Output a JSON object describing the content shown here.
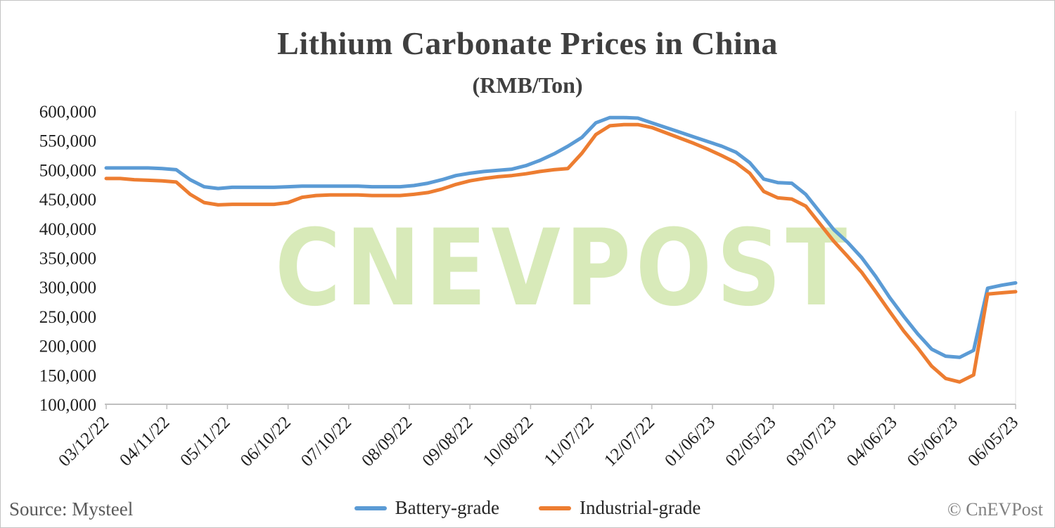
{
  "page": {
    "title": "Lithium Carbonate Prices in China",
    "subtitle": "(RMB/Ton)"
  },
  "watermark": "CNEVPOST",
  "footer": {
    "source": "Source: Mysteel",
    "copyright": "© CnEVPost"
  },
  "legend": [
    {
      "label": "Battery-grade"
    },
    {
      "label": "Industrial-grade"
    }
  ],
  "colors": {
    "battery_grade": "#5B9BD5",
    "industrial_grade": "#ED7D31",
    "watermark": "#cbe3a2",
    "axis": "#bfbfbf",
    "axis_text": "#1f1f1f",
    "muted_text": "#595959",
    "title_text": "#3f3f3f"
  },
  "chart_data": {
    "type": "line",
    "title": "Lithium Carbonate Prices in China",
    "units": "RMB/Ton",
    "grid": false,
    "legend_position": "bottom",
    "ylim": [
      100000,
      600000
    ],
    "y_tick_labels": [
      "100,000",
      "150,000",
      "200,000",
      "250,000",
      "300,000",
      "350,000",
      "400,000",
      "450,000",
      "500,000",
      "550,000",
      "600,000"
    ],
    "x_tick_labels": [
      "03/12/22",
      "04/11/22",
      "05/11/22",
      "06/10/22",
      "07/10/22",
      "08/09/22",
      "09/08/22",
      "10/08/22",
      "11/07/22",
      "12/07/22",
      "01/06/23",
      "02/05/23",
      "03/07/23",
      "04/06/23",
      "05/06/23",
      "06/05/23"
    ],
    "x_unit": "weekly samples from 03/12/22 to 06/05/23",
    "series": [
      {
        "name": "Battery-grade",
        "color": "#5B9BD5",
        "values": [
          503000,
          503000,
          503000,
          503000,
          502000,
          500000,
          483000,
          471000,
          468000,
          470000,
          470000,
          470000,
          470000,
          471000,
          472000,
          472000,
          472000,
          472000,
          472000,
          471000,
          471000,
          471000,
          473000,
          477000,
          483000,
          490000,
          494000,
          497000,
          499000,
          501000,
          507000,
          516000,
          527000,
          540000,
          555000,
          580000,
          589000,
          589000,
          588000,
          580000,
          572000,
          564000,
          556000,
          548000,
          540000,
          530000,
          512000,
          484000,
          478000,
          477000,
          458000,
          428000,
          398000,
          376000,
          350000,
          318000,
          282000,
          250000,
          220000,
          194000,
          182000,
          180000,
          192000,
          298000,
          303000,
          307000
        ]
      },
      {
        "name": "Industrial-grade",
        "color": "#ED7D31",
        "values": [
          485000,
          485000,
          483000,
          482000,
          481000,
          479000,
          458000,
          444000,
          440000,
          441000,
          441000,
          441000,
          441000,
          444000,
          453000,
          456000,
          457000,
          457000,
          457000,
          456000,
          456000,
          456000,
          458000,
          461000,
          467000,
          475000,
          481000,
          485000,
          488000,
          490000,
          493000,
          497000,
          500000,
          502000,
          528000,
          560000,
          575000,
          577000,
          577000,
          572000,
          563000,
          554000,
          545000,
          535000,
          524000,
          512000,
          494000,
          463000,
          452000,
          450000,
          438000,
          408000,
          378000,
          352000,
          325000,
          292000,
          258000,
          225000,
          196000,
          165000,
          144000,
          138000,
          150000,
          288000,
          290000,
          292000
        ]
      }
    ]
  }
}
